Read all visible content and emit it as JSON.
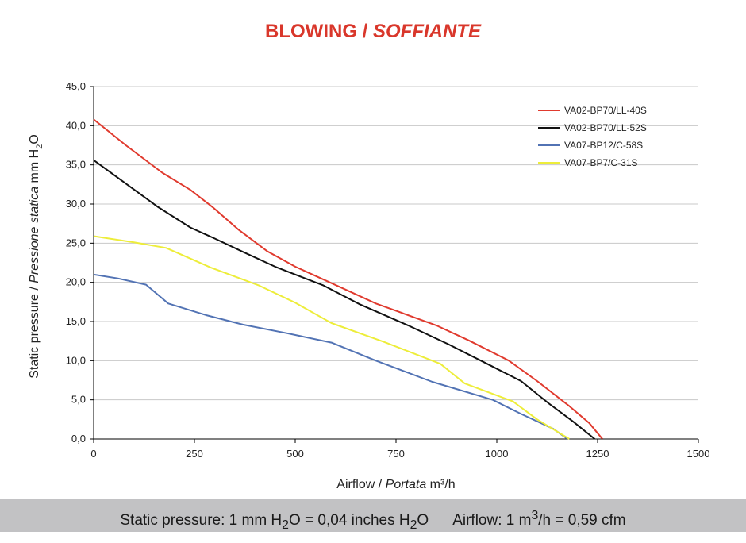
{
  "title": {
    "main": "BLOWING / ",
    "italic": "SOFFIANTE"
  },
  "chart_data": {
    "type": "line",
    "xlabel": "Airflow / Portata m³/h",
    "xlabel_parts": {
      "plain": "Airflow",
      "slash": "/",
      "italic": "Portata",
      "unit": "m³/h"
    },
    "ylabel": "Static pressure / Pressione statica mm H2O",
    "ylabel_parts": {
      "plain": "Static pressure",
      "slash": "/",
      "italic": "Pressione statica",
      "unit": "mm  H",
      "sub": "2",
      "tail": "O"
    },
    "xlim": [
      0,
      1500
    ],
    "ylim": [
      0,
      45
    ],
    "x_ticks": [
      0,
      250,
      500,
      750,
      1000,
      1250,
      1500
    ],
    "x_tick_labels": [
      "0",
      "250",
      "500",
      "750",
      "1000",
      "1250",
      "1500"
    ],
    "y_ticks": [
      0,
      5,
      10,
      15,
      20,
      25,
      30,
      35,
      40,
      45
    ],
    "y_tick_labels": [
      "0,0",
      "5,0",
      "10,0",
      "15,0",
      "20,0",
      "25,0",
      "30,0",
      "35,0",
      "40,0",
      "45,0"
    ],
    "grid": true,
    "legend": "top-right",
    "series": [
      {
        "name": "VA02-BP70/LL-40S",
        "color": "#e03a2e",
        "x": [
          0,
          80,
          170,
          240,
          295,
          360,
          430,
          500,
          590,
          700,
          850,
          930,
          1030,
          1100,
          1180,
          1230,
          1262
        ],
        "y": [
          40.8,
          37.5,
          34.0,
          31.8,
          29.6,
          26.7,
          24.0,
          22.0,
          19.9,
          17.3,
          14.5,
          12.6,
          10.0,
          7.4,
          4.2,
          2.0,
          0.0
        ]
      },
      {
        "name": "VA02-BP70/LL-52S",
        "color": "#111111",
        "x": [
          0,
          80,
          160,
          240,
          300,
          370,
          450,
          510,
          570,
          660,
          780,
          880,
          980,
          1060,
          1130,
          1190,
          1243
        ],
        "y": [
          35.6,
          32.6,
          29.6,
          27.0,
          25.6,
          23.9,
          22.0,
          20.8,
          19.6,
          17.2,
          14.5,
          12.1,
          9.5,
          7.4,
          4.5,
          2.2,
          0.0
        ]
      },
      {
        "name": "VA07-BP12/C-58S",
        "color": "#5273b4",
        "x": [
          0,
          60,
          130,
          185,
          280,
          370,
          480,
          590,
          700,
          840,
          990,
          1060,
          1140,
          1176
        ],
        "y": [
          21.0,
          20.5,
          19.7,
          17.3,
          15.8,
          14.6,
          13.5,
          12.3,
          10.0,
          7.3,
          5.0,
          3.2,
          1.3,
          0.0
        ]
      },
      {
        "name": "VA07-BP7/C-31S",
        "color": "#eded3a",
        "x": [
          0,
          100,
          180,
          290,
          410,
          500,
          590,
          720,
          860,
          920,
          1040,
          1100,
          1180
        ],
        "y": [
          25.9,
          25.1,
          24.4,
          21.9,
          19.6,
          17.4,
          14.8,
          12.4,
          9.6,
          7.1,
          4.8,
          2.5,
          0.0
        ]
      }
    ]
  },
  "footer": {
    "pressure": {
      "a": "Static pressure: 1 mm H",
      "sub1": "2",
      "b": "O = 0,04 inches H",
      "sub2": "2",
      "c": "O"
    },
    "airflow": {
      "a": "Airflow: 1 m",
      "sup": "3",
      "b": "/h = 0,59 cfm"
    }
  }
}
